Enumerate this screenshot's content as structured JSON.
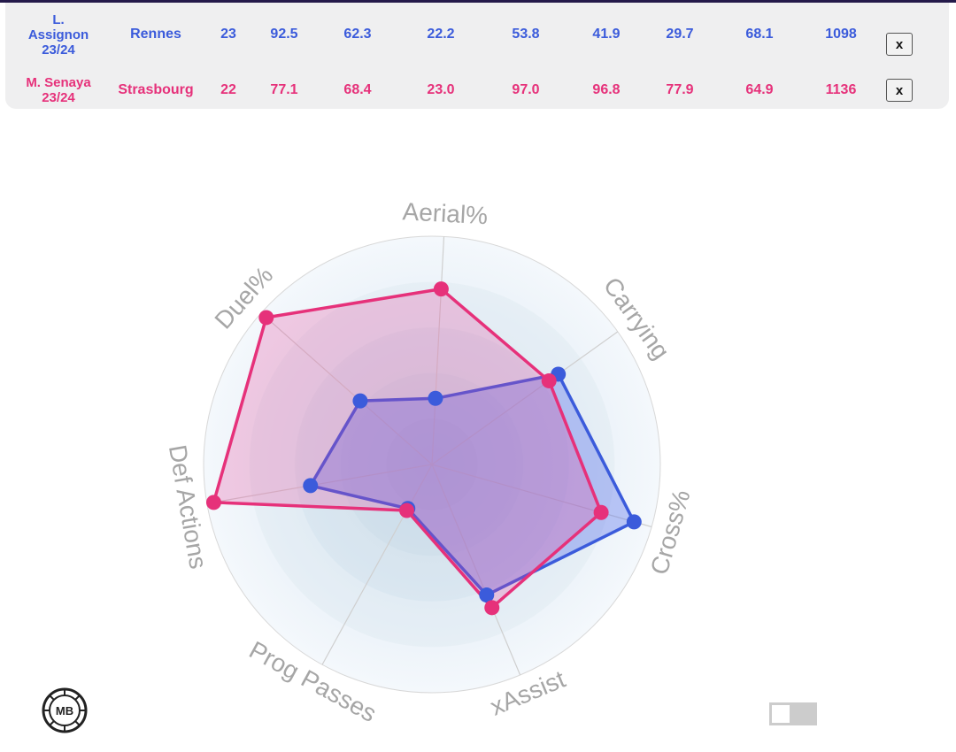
{
  "players": [
    {
      "name_lines": [
        "L.",
        "Assignon",
        "23/24"
      ],
      "team": "Rennes",
      "stats": [
        "23",
        "92.5",
        "62.3",
        "22.2",
        "53.8",
        "41.9",
        "29.7",
        "68.1",
        "1098"
      ],
      "remove_label": "x",
      "color": "#3b5bdb"
    },
    {
      "name_lines": [
        "M. Senaya",
        "23/24"
      ],
      "team": "Strasbourg",
      "stats": [
        "22",
        "77.1",
        "68.4",
        "23.0",
        "97.0",
        "96.8",
        "77.9",
        "64.9",
        "1136"
      ],
      "remove_label": "x",
      "color": "#e6317a"
    }
  ],
  "logo_text": "MB",
  "chart_data": {
    "type": "radar",
    "axes": [
      "Aerial%",
      "Carrying",
      "Cross%",
      "xAssist",
      "Prog Passes",
      "Def Actions",
      "Duel%"
    ],
    "range": [
      0,
      100
    ],
    "series": [
      {
        "name": "L. Assignon 23/24",
        "color": "#3b5bdb",
        "values": [
          29,
          68,
          92,
          62,
          22,
          54,
          42
        ]
      },
      {
        "name": "M. Senaya 23/24",
        "color": "#e6317a",
        "values": [
          77,
          63,
          77,
          68,
          23,
          97,
          97
        ]
      }
    ]
  }
}
